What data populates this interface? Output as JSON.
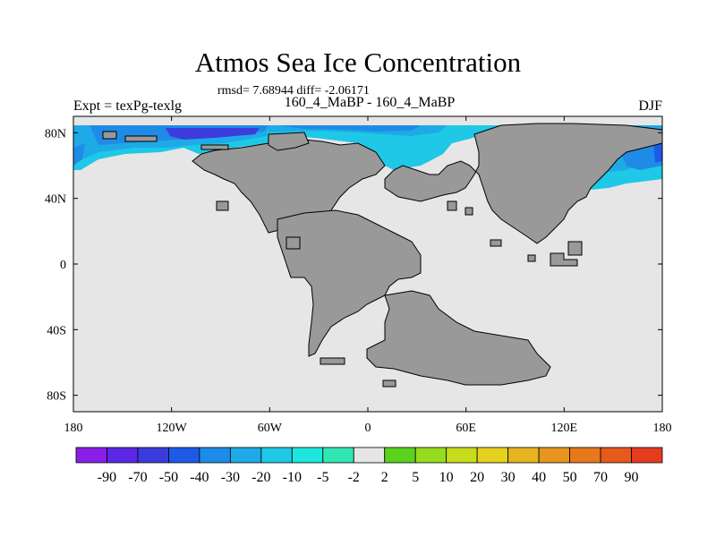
{
  "title": "Atmos Sea Ice Concentration",
  "stats_line": "rmsd= 7.68944 diff= -2.06171",
  "left_label": "Expt = texPg-texlg",
  "center_label": "160_4_MaBP - 160_4_MaBP",
  "right_label": "DJF",
  "map": {
    "lon_range": [
      -180,
      180
    ],
    "lat_range": [
      -90,
      90
    ],
    "x_ticks": [
      {
        "value": -180,
        "label": "180"
      },
      {
        "value": -120,
        "label": "120W"
      },
      {
        "value": -60,
        "label": "60W"
      },
      {
        "value": 0,
        "label": "0"
      },
      {
        "value": 60,
        "label": "60E"
      },
      {
        "value": 120,
        "label": "120E"
      },
      {
        "value": 180,
        "label": "180"
      }
    ],
    "y_ticks": [
      {
        "value": 80,
        "label": "80N"
      },
      {
        "value": 40,
        "label": "40N"
      },
      {
        "value": 0,
        "label": "0"
      },
      {
        "value": -40,
        "label": "40S"
      },
      {
        "value": -80,
        "label": "80S"
      }
    ],
    "ocean_color": "#e6e6e6",
    "land_color": "#999999"
  },
  "colorbar": {
    "colors": [
      "#8a1ee6",
      "#5a28e6",
      "#3c3cdc",
      "#1e5ae6",
      "#1e8ce6",
      "#1eaae6",
      "#1ec8e6",
      "#1ee6dc",
      "#32e6b4",
      "#e6e6e6",
      "#5ad21e",
      "#96dc1e",
      "#c8dc1e",
      "#e6d21e",
      "#e6b41e",
      "#e6961e",
      "#e6781e",
      "#e65a1e",
      "#e63c1e"
    ],
    "labels": [
      "-90",
      "-70",
      "-50",
      "-40",
      "-30",
      "-20",
      "-10",
      "-5",
      "-2",
      "2",
      "5",
      "10",
      "20",
      "30",
      "40",
      "50",
      "70",
      "90"
    ]
  }
}
